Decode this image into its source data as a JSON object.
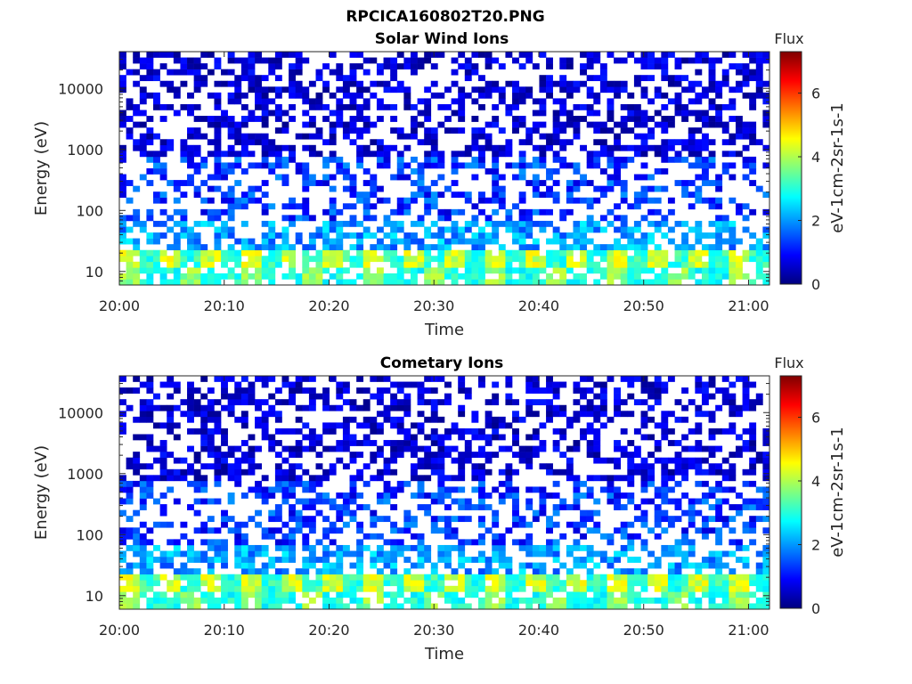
{
  "figure_title": "RPCICA160802T20.PNG",
  "chart_data": [
    {
      "type": "heatmap",
      "title": "Solar Wind Ions",
      "xlabel": "Time",
      "ylabel": "Energy (eV)",
      "yscale": "log",
      "ylim": [
        6,
        40000
      ],
      "xlim": [
        "20:00",
        "21:02"
      ],
      "x_ticks": [
        "20:00",
        "20:10",
        "20:20",
        "20:30",
        "20:40",
        "20:50",
        "21:00"
      ],
      "y_ticks": [
        "10",
        "100",
        "1000",
        "10000"
      ],
      "colorbar": {
        "title": "Flux",
        "label": "eV-1cm-2sr-1s-1",
        "range": [
          0,
          7.3
        ],
        "ticks": [
          "0",
          "2",
          "4",
          "6"
        ],
        "colormap": "jet"
      },
      "seed": 11
    },
    {
      "type": "heatmap",
      "title": "Cometary Ions",
      "xlabel": "Time",
      "ylabel": "Energy (eV)",
      "yscale": "log",
      "ylim": [
        6,
        40000
      ],
      "xlim": [
        "20:00",
        "21:02"
      ],
      "x_ticks": [
        "20:00",
        "20:10",
        "20:20",
        "20:30",
        "20:40",
        "20:50",
        "21:00"
      ],
      "y_ticks": [
        "10",
        "100",
        "1000",
        "10000"
      ],
      "colorbar": {
        "title": "Flux",
        "label": "eV-1cm-2sr-1s-1",
        "range": [
          0,
          7.3
        ],
        "ticks": [
          "0",
          "2",
          "4",
          "6"
        ],
        "colormap": "jet"
      },
      "seed": 29
    }
  ]
}
